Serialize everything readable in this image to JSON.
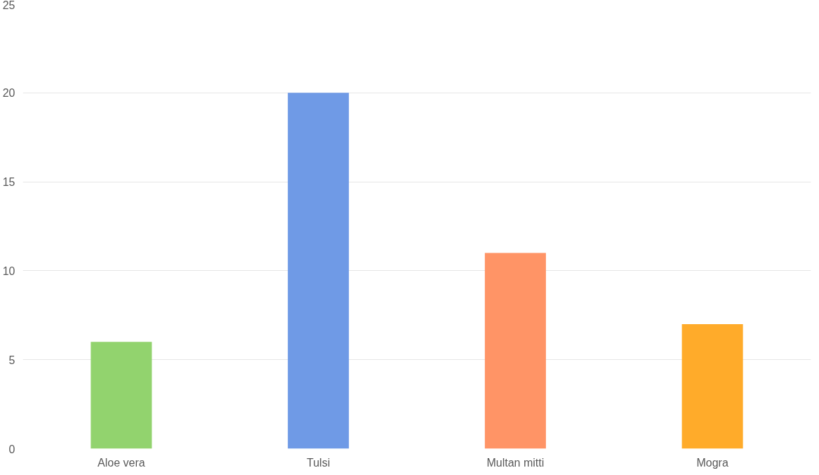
{
  "chart_data": {
    "type": "bar",
    "categories": [
      "Aloe vera",
      "Tulsi",
      "Multan mitti",
      "Mogra"
    ],
    "values": [
      6,
      20,
      11,
      7
    ],
    "colors": [
      "#92d36e",
      "#6f9ae6",
      "#ff9466",
      "#ffab2a"
    ],
    "ylim": [
      0,
      25
    ],
    "yticks": [
      0,
      5,
      10,
      15,
      20,
      25
    ],
    "grid": "y"
  }
}
